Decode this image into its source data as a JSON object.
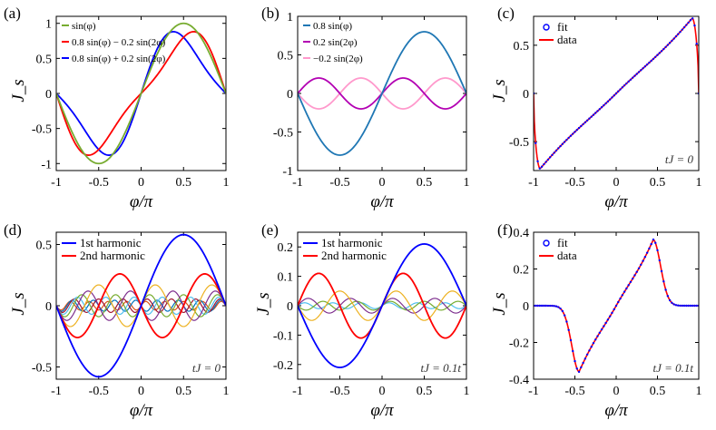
{
  "chart_data": [
    {
      "panel": "(a)",
      "type": "line",
      "xlabel": "φ/π",
      "ylabel": "J_s",
      "xlim": [
        -1,
        1
      ],
      "ylim": [
        -1.1,
        1.1
      ],
      "xticks": [
        -1,
        -0.5,
        0,
        0.5,
        1
      ],
      "xtick_labels": [
        "-1",
        "-0.5",
        "0",
        "0.5",
        "1"
      ],
      "yticks": [
        -1,
        -0.5,
        0,
        0.5,
        1
      ],
      "ytick_labels": [
        "-1",
        "-0.5",
        "0",
        "0.5",
        "1"
      ],
      "legend_position": "top-left",
      "series": [
        {
          "name": "sin(φ)",
          "color": "#77ac30",
          "a": [
            1.0,
            0,
            0,
            0,
            0,
            0
          ]
        },
        {
          "name": "0.8 sin(φ) − 0.2 sin(2φ)",
          "color": "#ff0000",
          "a": [
            0.8,
            -0.2,
            0,
            0,
            0,
            0
          ]
        },
        {
          "name": "0.8 sin(φ) + 0.2 sin(2φ)",
          "color": "#0000ff",
          "a": [
            0.8,
            0.2,
            0,
            0,
            0,
            0
          ]
        }
      ]
    },
    {
      "panel": "(b)",
      "type": "line",
      "xlabel": "φ/π",
      "ylabel": "",
      "xlim": [
        -1,
        1
      ],
      "ylim": [
        -1,
        1
      ],
      "xticks": [
        -1,
        -0.5,
        0,
        0.5,
        1
      ],
      "xtick_labels": [
        "-1",
        "-0.5",
        "0",
        "0.5",
        "1"
      ],
      "yticks": [
        -1,
        -0.5,
        0,
        0.5,
        1
      ],
      "ytick_labels": [
        "-1",
        "-0.5",
        "0",
        "0.5",
        "1"
      ],
      "legend_position": "top-left",
      "series": [
        {
          "name": "0.8 sin(φ)",
          "color": "#1f77b4",
          "a": [
            0.8,
            0,
            0,
            0,
            0,
            0
          ]
        },
        {
          "name": "0.2 sin(2φ)",
          "color": "#b300b3",
          "a": [
            0,
            0.2,
            0,
            0,
            0,
            0
          ]
        },
        {
          "name": "−0.2 sin(2φ)",
          "color": "#ff99cc",
          "a": [
            0,
            -0.2,
            0,
            0,
            0,
            0
          ]
        }
      ]
    },
    {
      "panel": "(c)",
      "type": "line",
      "xlabel": "φ/π",
      "ylabel": "J_s",
      "xlim": [
        -1,
        1
      ],
      "ylim": [
        -0.8,
        0.8
      ],
      "xticks": [
        -1,
        -0.5,
        0,
        0.5,
        1
      ],
      "xtick_labels": [
        "-1",
        "-0.5",
        "0",
        "0.5",
        "1"
      ],
      "yticks": [
        -0.5,
        0,
        0.5
      ],
      "ytick_labels": [
        "-0.5",
        "0",
        "0.5"
      ],
      "legend_position": "top-left",
      "annotation": "tJ = 0",
      "series": [
        {
          "name": "fit",
          "color": "#0000ff",
          "style": "markers"
        },
        {
          "name": "data",
          "color": "#ff0000",
          "style": "line"
        }
      ],
      "curve_shape": {
        "peak_x": 0.92,
        "peak_y": 0.78
      }
    },
    {
      "panel": "(d)",
      "type": "line",
      "xlabel": "φ/π",
      "ylabel": "J_s",
      "xlim": [
        -1,
        1
      ],
      "ylim": [
        -0.6,
        0.6
      ],
      "xticks": [
        -1,
        -0.5,
        0,
        0.5,
        1
      ],
      "xtick_labels": [
        "-1",
        "-0.5",
        "0",
        "0.5",
        "1"
      ],
      "yticks": [
        -0.5,
        0,
        0.5
      ],
      "ytick_labels": [
        "-0.5",
        "0",
        "0.5"
      ],
      "legend_position": "top-left",
      "annotation": "tJ = 0",
      "series": [
        {
          "name": "1st harmonic",
          "color": "#0000ff",
          "amplitude": 0.58,
          "n": 1
        },
        {
          "name": "2nd harmonic",
          "color": "#ff0000",
          "amplitude": -0.26,
          "n": 2
        },
        {
          "name": "",
          "color": "#edb120",
          "amplitude": 0.17,
          "n": 3
        },
        {
          "name": "",
          "color": "#7e2f8e",
          "amplitude": -0.12,
          "n": 4
        },
        {
          "name": "",
          "color": "#77ac30",
          "amplitude": 0.09,
          "n": 5
        },
        {
          "name": "",
          "color": "#4dbeee",
          "amplitude": -0.07,
          "n": 6
        },
        {
          "name": "",
          "color": "#a2142f",
          "amplitude": 0.055,
          "n": 7
        },
        {
          "name": "",
          "color": "#0072bd",
          "amplitude": -0.045,
          "n": 8
        },
        {
          "name": "",
          "color": "#d95319",
          "amplitude": 0.035,
          "n": 9
        }
      ]
    },
    {
      "panel": "(e)",
      "type": "line",
      "xlabel": "φ/π",
      "ylabel": "J_s",
      "xlim": [
        -1,
        1
      ],
      "ylim": [
        -0.25,
        0.25
      ],
      "xticks": [
        -1,
        -0.5,
        0,
        0.5,
        1
      ],
      "xtick_labels": [
        "-1",
        "-0.5",
        "0",
        "0.5",
        "1"
      ],
      "yticks": [
        -0.2,
        -0.1,
        0,
        0.1,
        0.2
      ],
      "ytick_labels": [
        "-0.2",
        "-0.1",
        "0",
        "0.1",
        "0.2"
      ],
      "legend_position": "top-left",
      "annotation": "tJ = 0.1t",
      "series": [
        {
          "name": "1st harmonic",
          "color": "#0000ff",
          "amplitude": 0.21,
          "n": 1
        },
        {
          "name": "2nd harmonic",
          "color": "#ff0000",
          "amplitude": 0.11,
          "n": 2
        },
        {
          "name": "",
          "color": "#edb120",
          "amplitude": 0.05,
          "n": 3
        },
        {
          "name": "",
          "color": "#7e2f8e",
          "amplitude": 0.025,
          "n": 4
        },
        {
          "name": "",
          "color": "#77ac30",
          "amplitude": 0.015,
          "n": 5
        },
        {
          "name": "",
          "color": "#4dbeee",
          "amplitude": 0.01,
          "n": 6
        }
      ]
    },
    {
      "panel": "(f)",
      "type": "line",
      "xlabel": "φ/π",
      "ylabel": "J_s",
      "xlim": [
        -1,
        1
      ],
      "ylim": [
        -0.4,
        0.4
      ],
      "xticks": [
        -1,
        -0.5,
        0,
        0.5,
        1
      ],
      "xtick_labels": [
        "-1",
        "-0.5",
        "0",
        "0.5",
        "1"
      ],
      "yticks": [
        -0.4,
        -0.2,
        0,
        0.2,
        0.4
      ],
      "ytick_labels": [
        "-0.4",
        "-0.2",
        "0",
        "0.2",
        "0.4"
      ],
      "legend_position": "top-left",
      "annotation": "tJ = 0.1t",
      "series": [
        {
          "name": "fit",
          "color": "#0000ff",
          "style": "markers"
        },
        {
          "name": "data",
          "color": "#ff0000",
          "style": "line"
        }
      ],
      "curve_shape": {
        "peak_x": 0.45,
        "peak_y": 0.36
      }
    }
  ]
}
